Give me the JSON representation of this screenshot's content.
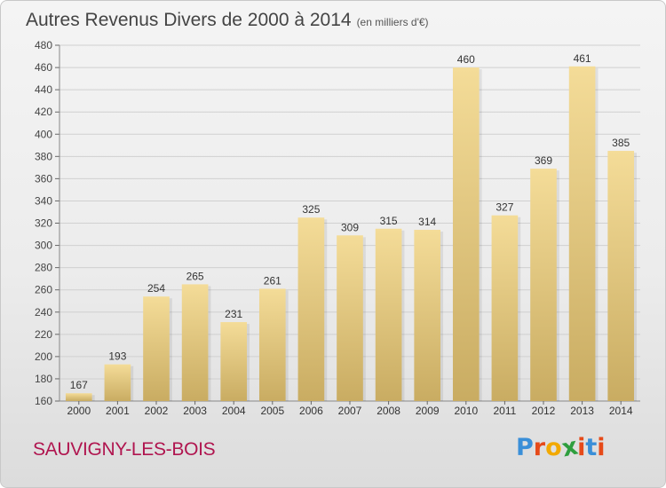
{
  "chart_data": {
    "type": "bar",
    "title": "Autres Revenus Divers de 2000 à 2014",
    "subtitle": "(en milliers d'€)",
    "categories": [
      "2000",
      "2001",
      "2002",
      "2003",
      "2004",
      "2005",
      "2006",
      "2007",
      "2008",
      "2009",
      "2010",
      "2011",
      "2012",
      "2013",
      "2014"
    ],
    "values": [
      167,
      193,
      254,
      265,
      231,
      261,
      325,
      309,
      315,
      314,
      460,
      327,
      369,
      461,
      385
    ],
    "ylim": [
      160,
      480
    ],
    "yticks": [
      160,
      180,
      200,
      220,
      240,
      260,
      280,
      300,
      320,
      340,
      360,
      380,
      400,
      420,
      440,
      460,
      480
    ],
    "xlabel": "",
    "ylabel": "",
    "grid": true,
    "bar_color": "#e8cc85"
  },
  "commune": "SAUVIGNY-LES-BOIS",
  "logo": {
    "text": "Proxiti",
    "letter_colors": [
      "#3a8fd8",
      "#e64a19",
      "#f2a900",
      "#2e9e3e",
      "#e64a19",
      "#3a8fd8",
      "#e64a19"
    ]
  }
}
